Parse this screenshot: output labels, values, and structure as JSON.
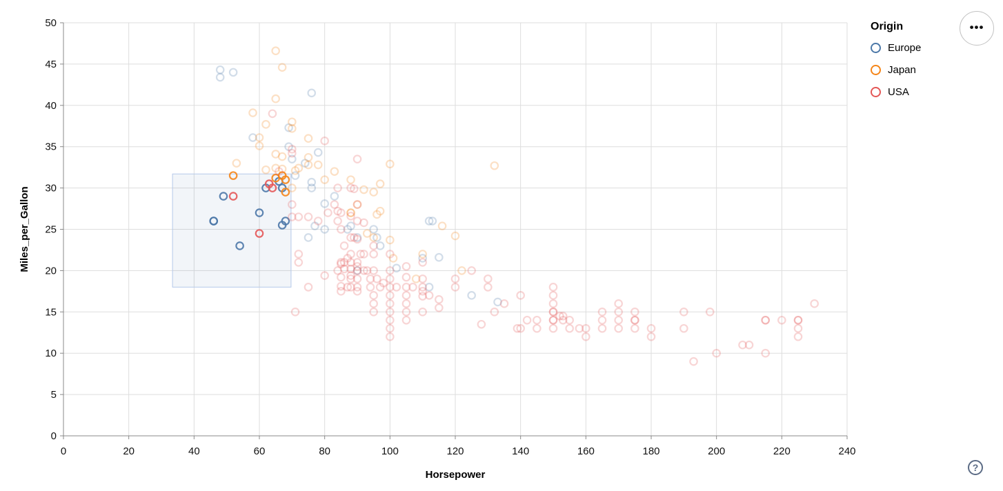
{
  "chart_data": {
    "type": "scatter",
    "title": "",
    "xlabel": "Horsepower",
    "ylabel": "Miles_per_Gallon",
    "x_axis": {
      "min": 0,
      "max": 240,
      "step": 20
    },
    "y_axis": {
      "min": 0,
      "max": 50,
      "step": 5
    },
    "grid": true,
    "legend": {
      "title": "Origin",
      "position": "top-right",
      "entries": [
        {
          "code": "E",
          "label": "Europe",
          "color": "#4c78a8"
        },
        {
          "code": "J",
          "label": "Japan",
          "color": "#f58518"
        },
        {
          "code": "U",
          "label": "USA",
          "color": "#e45756"
        }
      ]
    },
    "brush": {
      "x_min": 33.4,
      "x_max": 69.7,
      "y_min": 18.0,
      "y_max": 31.7,
      "fill": "#4c78a8",
      "fill_opacity": 0.07,
      "stroke": "#b5c9ea"
    },
    "style": {
      "selected_opacity": 0.9,
      "unselected_opacity": 0.25,
      "point_radius": 5.2,
      "point_stroke_width": 2.2,
      "grid_color": "#dddddd",
      "axis_color": "#888888"
    },
    "points": [
      [
        46,
        26,
        "E"
      ],
      [
        46,
        26,
        "E"
      ],
      [
        49,
        29,
        "E"
      ],
      [
        54,
        23,
        "E"
      ],
      [
        60,
        27,
        "E"
      ],
      [
        62,
        30,
        "E"
      ],
      [
        66,
        30.8,
        "E"
      ],
      [
        67,
        30,
        "E"
      ],
      [
        67,
        25.5,
        "E"
      ],
      [
        68,
        26,
        "E"
      ],
      [
        48,
        43.4,
        "E"
      ],
      [
        48,
        44.3,
        "E"
      ],
      [
        52,
        44,
        "E"
      ],
      [
        58,
        36.1,
        "E"
      ],
      [
        69,
        35,
        "E"
      ],
      [
        69,
        37.3,
        "E"
      ],
      [
        70,
        33.5,
        "E"
      ],
      [
        71,
        31.5,
        "E"
      ],
      [
        74,
        33,
        "E"
      ],
      [
        75,
        24,
        "E"
      ],
      [
        76,
        30,
        "E"
      ],
      [
        76,
        30.7,
        "E"
      ],
      [
        76,
        41.5,
        "E"
      ],
      [
        77,
        25.4,
        "E"
      ],
      [
        78,
        34.3,
        "E"
      ],
      [
        80,
        25,
        "E"
      ],
      [
        80,
        28.1,
        "E"
      ],
      [
        83,
        29,
        "E"
      ],
      [
        87,
        25,
        "E"
      ],
      [
        88,
        25.4,
        "E"
      ],
      [
        90,
        24,
        "E"
      ],
      [
        90,
        20,
        "E"
      ],
      [
        95,
        25,
        "E"
      ],
      [
        96,
        24,
        "E"
      ],
      [
        97,
        23,
        "E"
      ],
      [
        102,
        20.3,
        "E"
      ],
      [
        110,
        21.5,
        "E"
      ],
      [
        112,
        18,
        "E"
      ],
      [
        112,
        26,
        "E"
      ],
      [
        113,
        26,
        "E"
      ],
      [
        115,
        21.6,
        "E"
      ],
      [
        125,
        17,
        "E"
      ],
      [
        133,
        16.2,
        "E"
      ],
      [
        52,
        31.5,
        "J"
      ],
      [
        65,
        31.2,
        "J"
      ],
      [
        67,
        31.5,
        "J"
      ],
      [
        68,
        31,
        "J"
      ],
      [
        68,
        29.5,
        "J"
      ],
      [
        53,
        33,
        "J"
      ],
      [
        58,
        39.1,
        "J"
      ],
      [
        60,
        36.1,
        "J"
      ],
      [
        60,
        35.1,
        "J"
      ],
      [
        62,
        37.7,
        "J"
      ],
      [
        62,
        32.2,
        "J"
      ],
      [
        65,
        46.6,
        "J"
      ],
      [
        65,
        40.8,
        "J"
      ],
      [
        65,
        32.4,
        "J"
      ],
      [
        65,
        34.1,
        "J"
      ],
      [
        67,
        44.6,
        "J"
      ],
      [
        67,
        33.8,
        "J"
      ],
      [
        67,
        32.3,
        "J"
      ],
      [
        70,
        30,
        "J"
      ],
      [
        70,
        38,
        "J"
      ],
      [
        70,
        37.2,
        "J"
      ],
      [
        71,
        32.1,
        "J"
      ],
      [
        72,
        32.4,
        "J"
      ],
      [
        75,
        33.7,
        "J"
      ],
      [
        75,
        32.8,
        "J"
      ],
      [
        75,
        36,
        "J"
      ],
      [
        78,
        32.8,
        "J"
      ],
      [
        80,
        31,
        "J"
      ],
      [
        83,
        32,
        "J"
      ],
      [
        88,
        27,
        "J"
      ],
      [
        88,
        27,
        "J"
      ],
      [
        88,
        31,
        "J"
      ],
      [
        90,
        28,
        "J"
      ],
      [
        92,
        29.8,
        "J"
      ],
      [
        93,
        24.5,
        "J"
      ],
      [
        95,
        24,
        "J"
      ],
      [
        95,
        29.5,
        "J"
      ],
      [
        96,
        26.8,
        "J"
      ],
      [
        97,
        27.2,
        "J"
      ],
      [
        97,
        30.5,
        "J"
      ],
      [
        100,
        32.9,
        "J"
      ],
      [
        100,
        23.7,
        "J"
      ],
      [
        101,
        21.5,
        "J"
      ],
      [
        108,
        19,
        "J"
      ],
      [
        110,
        22,
        "J"
      ],
      [
        116,
        25.4,
        "J"
      ],
      [
        120,
        24.2,
        "J"
      ],
      [
        122,
        20,
        "J"
      ],
      [
        132,
        32.7,
        "J"
      ],
      [
        52,
        29,
        "U"
      ],
      [
        60,
        24.5,
        "U"
      ],
      [
        63,
        30.5,
        "U"
      ],
      [
        64,
        30,
        "U"
      ],
      [
        64,
        39,
        "U"
      ],
      [
        66,
        32,
        "U"
      ],
      [
        70,
        28,
        "U"
      ],
      [
        70,
        26.5,
        "U"
      ],
      [
        70,
        34.2,
        "U"
      ],
      [
        70,
        34.7,
        "U"
      ],
      [
        71,
        15,
        "U"
      ],
      [
        72,
        22,
        "U"
      ],
      [
        72,
        21,
        "U"
      ],
      [
        72,
        26.5,
        "U"
      ],
      [
        75,
        26.5,
        "U"
      ],
      [
        75,
        18,
        "U"
      ],
      [
        78,
        26,
        "U"
      ],
      [
        80,
        19.4,
        "U"
      ],
      [
        80,
        35.7,
        "U"
      ],
      [
        81,
        27,
        "U"
      ],
      [
        83,
        28,
        "U"
      ],
      [
        84,
        20,
        "U"
      ],
      [
        84,
        26,
        "U"
      ],
      [
        84,
        27.2,
        "U"
      ],
      [
        84,
        30,
        "U"
      ],
      [
        85,
        17.5,
        "U"
      ],
      [
        85,
        18.1,
        "U"
      ],
      [
        85,
        19.2,
        "U"
      ],
      [
        85,
        20.8,
        "U"
      ],
      [
        85,
        21,
        "U"
      ],
      [
        85,
        25,
        "U"
      ],
      [
        85,
        27,
        "U"
      ],
      [
        86,
        20.2,
        "U"
      ],
      [
        86,
        21,
        "U"
      ],
      [
        86,
        23,
        "U"
      ],
      [
        87,
        18,
        "U"
      ],
      [
        87,
        21.5,
        "U"
      ],
      [
        88,
        18,
        "U"
      ],
      [
        88,
        19,
        "U"
      ],
      [
        88,
        19.4,
        "U"
      ],
      [
        88,
        20.2,
        "U"
      ],
      [
        88,
        21,
        "U"
      ],
      [
        88,
        22,
        "U"
      ],
      [
        88,
        24,
        "U"
      ],
      [
        88,
        26.6,
        "U"
      ],
      [
        88,
        30,
        "U"
      ],
      [
        89,
        24,
        "U"
      ],
      [
        89,
        29.9,
        "U"
      ],
      [
        90,
        17.5,
        "U"
      ],
      [
        90,
        18,
        "U"
      ],
      [
        90,
        19,
        "U"
      ],
      [
        90,
        20,
        "U"
      ],
      [
        90,
        20.5,
        "U"
      ],
      [
        90,
        21,
        "U"
      ],
      [
        90,
        23.8,
        "U"
      ],
      [
        90,
        26,
        "U"
      ],
      [
        90,
        28,
        "U"
      ],
      [
        90,
        33.5,
        "U"
      ],
      [
        91,
        22,
        "U"
      ],
      [
        92,
        20,
        "U"
      ],
      [
        92,
        22,
        "U"
      ],
      [
        92,
        25.8,
        "U"
      ],
      [
        93,
        20,
        "U"
      ],
      [
        94,
        18,
        "U"
      ],
      [
        94,
        19,
        "U"
      ],
      [
        95,
        15,
        "U"
      ],
      [
        95,
        16,
        "U"
      ],
      [
        95,
        17,
        "U"
      ],
      [
        95,
        20,
        "U"
      ],
      [
        95,
        22,
        "U"
      ],
      [
        95,
        23,
        "U"
      ],
      [
        96,
        19,
        "U"
      ],
      [
        97,
        18,
        "U"
      ],
      [
        98,
        18.5,
        "U"
      ],
      [
        100,
        12,
        "U"
      ],
      [
        100,
        13,
        "U"
      ],
      [
        100,
        14,
        "U"
      ],
      [
        100,
        15,
        "U"
      ],
      [
        100,
        16,
        "U"
      ],
      [
        100,
        17,
        "U"
      ],
      [
        100,
        18,
        "U"
      ],
      [
        100,
        19,
        "U"
      ],
      [
        100,
        20,
        "U"
      ],
      [
        100,
        22,
        "U"
      ],
      [
        102,
        18,
        "U"
      ],
      [
        105,
        14,
        "U"
      ],
      [
        105,
        15,
        "U"
      ],
      [
        105,
        16,
        "U"
      ],
      [
        105,
        17,
        "U"
      ],
      [
        105,
        18,
        "U"
      ],
      [
        105,
        19.2,
        "U"
      ],
      [
        105,
        20.5,
        "U"
      ],
      [
        107,
        18,
        "U"
      ],
      [
        110,
        15,
        "U"
      ],
      [
        110,
        16.9,
        "U"
      ],
      [
        110,
        17.5,
        "U"
      ],
      [
        110,
        18,
        "U"
      ],
      [
        110,
        19,
        "U"
      ],
      [
        110,
        21,
        "U"
      ],
      [
        112,
        17,
        "U"
      ],
      [
        115,
        15.5,
        "U"
      ],
      [
        115,
        16.5,
        "U"
      ],
      [
        120,
        18,
        "U"
      ],
      [
        120,
        19,
        "U"
      ],
      [
        125,
        20,
        "U"
      ],
      [
        128,
        13.5,
        "U"
      ],
      [
        130,
        18,
        "U"
      ],
      [
        130,
        19,
        "U"
      ],
      [
        132,
        15,
        "U"
      ],
      [
        135,
        16,
        "U"
      ],
      [
        139,
        13,
        "U"
      ],
      [
        140,
        13,
        "U"
      ],
      [
        140,
        17,
        "U"
      ],
      [
        142,
        14,
        "U"
      ],
      [
        145,
        13,
        "U"
      ],
      [
        145,
        14,
        "U"
      ],
      [
        150,
        13,
        "U"
      ],
      [
        150,
        14,
        "U"
      ],
      [
        150,
        14,
        "U"
      ],
      [
        150,
        15,
        "U"
      ],
      [
        150,
        15,
        "U"
      ],
      [
        150,
        16,
        "U"
      ],
      [
        150,
        17,
        "U"
      ],
      [
        150,
        18,
        "U"
      ],
      [
        152,
        14.5,
        "U"
      ],
      [
        153,
        14,
        "U"
      ],
      [
        153,
        14.5,
        "U"
      ],
      [
        155,
        13,
        "U"
      ],
      [
        155,
        14,
        "U"
      ],
      [
        158,
        13,
        "U"
      ],
      [
        160,
        12,
        "U"
      ],
      [
        160,
        13,
        "U"
      ],
      [
        165,
        13,
        "U"
      ],
      [
        165,
        14,
        "U"
      ],
      [
        165,
        15,
        "U"
      ],
      [
        170,
        13,
        "U"
      ],
      [
        170,
        14,
        "U"
      ],
      [
        170,
        15,
        "U"
      ],
      [
        170,
        16,
        "U"
      ],
      [
        175,
        13,
        "U"
      ],
      [
        175,
        14,
        "U"
      ],
      [
        175,
        14,
        "U"
      ],
      [
        175,
        15,
        "U"
      ],
      [
        180,
        12,
        "U"
      ],
      [
        180,
        13,
        "U"
      ],
      [
        190,
        13,
        "U"
      ],
      [
        190,
        15,
        "U"
      ],
      [
        193,
        9,
        "U"
      ],
      [
        198,
        15,
        "U"
      ],
      [
        200,
        10,
        "U"
      ],
      [
        208,
        11,
        "U"
      ],
      [
        210,
        11,
        "U"
      ],
      [
        215,
        10,
        "U"
      ],
      [
        215,
        14,
        "U"
      ],
      [
        215,
        14,
        "U"
      ],
      [
        220,
        14,
        "U"
      ],
      [
        225,
        12,
        "U"
      ],
      [
        225,
        13,
        "U"
      ],
      [
        225,
        14,
        "U"
      ],
      [
        225,
        14,
        "U"
      ],
      [
        230,
        16,
        "U"
      ]
    ]
  },
  "controls": {
    "menu_icon": "•••",
    "help_icon": "?"
  }
}
